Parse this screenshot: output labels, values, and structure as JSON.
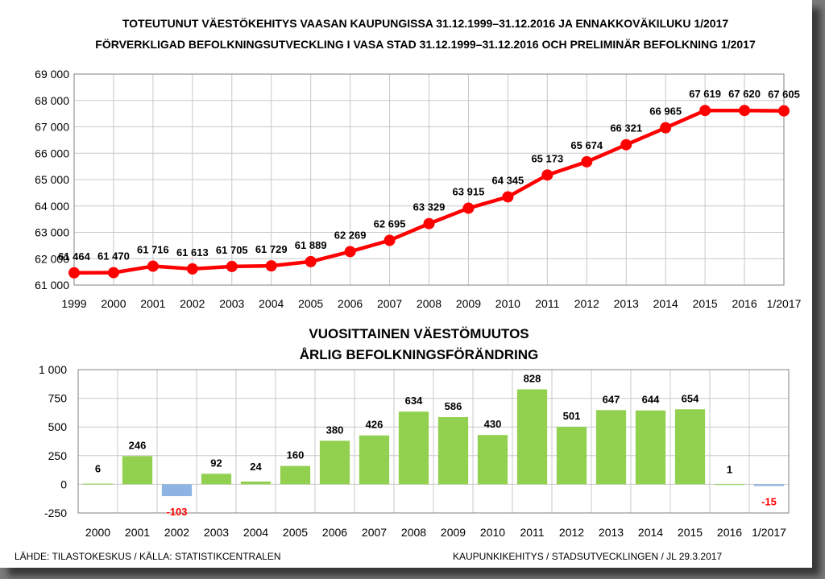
{
  "top_chart": {
    "title_line1": "TOTEUTUNUT VÄESTÖKEHITYS VAASAN KAUPUNGISSA 31.12.1999–31.12.2016 JA ENNAKKOVÄKILUKU 1/2017",
    "title_line2": "FÖRVERKLIGAD BEFOLKNINGSUTVECKLING I VASA STAD 31.12.1999–31.12.2016 OCH PRELIMINÄR BEFOLKNING 1/2017",
    "y_tick_labels": [
      "61 000",
      "62 000",
      "63 000",
      "64 000",
      "65 000",
      "66 000",
      "67 000",
      "68 000",
      "69 000"
    ]
  },
  "bottom_chart": {
    "title_line1": "VUOSITTAINEN VÄESTÖMUUTOS",
    "title_line2": "ÅRLIG BEFOLKNINGSFÖRÄNDRING",
    "y_tick_labels": [
      "-250",
      "0",
      "250",
      "500",
      "750",
      "1 000"
    ]
  },
  "colors": {
    "line": "#ff0000",
    "marker": "#ff0000",
    "bar_positive": "#92d050",
    "bar_negative": "#8db4e2",
    "negative_label": "#ff0000",
    "grid": "#c8c8c8"
  },
  "chart_data": [
    {
      "type": "line",
      "categories": [
        "1999",
        "2000",
        "2001",
        "2002",
        "2003",
        "2004",
        "2005",
        "2006",
        "2007",
        "2008",
        "2009",
        "2010",
        "2011",
        "2012",
        "2013",
        "2014",
        "2015",
        "2016",
        "1/2017"
      ],
      "values": [
        61464,
        61470,
        61716,
        61613,
        61705,
        61729,
        61889,
        62269,
        62695,
        63329,
        63915,
        64345,
        65173,
        65674,
        66321,
        66965,
        67619,
        67620,
        67605
      ],
      "data_labels": [
        "61 464",
        "61 470",
        "61 716",
        "61 613",
        "61 705",
        "61 729",
        "61 889",
        "62 269",
        "62 695",
        "63 329",
        "63 915",
        "64 345",
        "65 173",
        "65 674",
        "66 321",
        "66 965",
        "67 619",
        "67 620",
        "67 605"
      ],
      "ylim": [
        61000,
        69000
      ],
      "grid": true
    },
    {
      "type": "bar",
      "categories": [
        "2000",
        "2001",
        "2002",
        "2003",
        "2004",
        "2005",
        "2006",
        "2007",
        "2008",
        "2009",
        "2010",
        "2011",
        "2012",
        "2013",
        "2014",
        "2015",
        "2016",
        "1/2017"
      ],
      "values": [
        6,
        246,
        -103,
        92,
        24,
        160,
        380,
        426,
        634,
        586,
        430,
        828,
        501,
        647,
        644,
        654,
        1,
        -15
      ],
      "data_labels": [
        "6",
        "246",
        "-103",
        "92",
        "24",
        "160",
        "380",
        "426",
        "634",
        "586",
        "430",
        "828",
        "501",
        "647",
        "644",
        "654",
        "1",
        "-15"
      ],
      "ylim": [
        -250,
        1000
      ],
      "grid": true
    }
  ],
  "footer": {
    "source": "LÄHDE: TILASTOKESKUS / KÄLLA: STATISTIKCENTRALEN",
    "credit": "KAUPUNKIKEHITYS  / STADSUTVECKLINGEN  / JL 29.3.2017"
  }
}
